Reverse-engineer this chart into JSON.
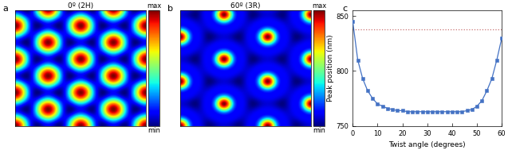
{
  "panel_a_title": "0º (2H)",
  "panel_b_title": "60º (3R)",
  "panel_c_xlabel": "Twist angle (degrees)",
  "panel_c_ylabel": "Peak position (nm)",
  "colorbar_max": "max",
  "colorbar_min": "min",
  "label_a": "a",
  "label_b": "b",
  "label_c": "c",
  "twist_angles": [
    0,
    2,
    4,
    6,
    8,
    10,
    12,
    14,
    16,
    18,
    20,
    22,
    24,
    26,
    28,
    30,
    32,
    34,
    36,
    38,
    40,
    42,
    44,
    46,
    48,
    50,
    52,
    54,
    56,
    58,
    60
  ],
  "peak_positions": [
    845,
    810,
    793,
    782,
    775,
    770,
    768,
    766,
    765,
    764,
    764,
    763,
    763,
    763,
    763,
    763,
    763,
    763,
    763,
    763,
    763,
    763,
    763,
    764,
    765,
    768,
    773,
    782,
    793,
    810,
    830
  ],
  "dashed_line_y": 838,
  "dashed_line_color": "#c87070",
  "ylim_bottom": 750,
  "ylim_top": 855,
  "yticks": [
    750,
    800,
    850
  ],
  "xticks": [
    0,
    10,
    20,
    30,
    40,
    50,
    60
  ],
  "line_color": "#4472c4",
  "marker_color": "#4472c4",
  "background_color": "#ffffff",
  "nc_2H": 4.0,
  "nc_3R": 3.0
}
